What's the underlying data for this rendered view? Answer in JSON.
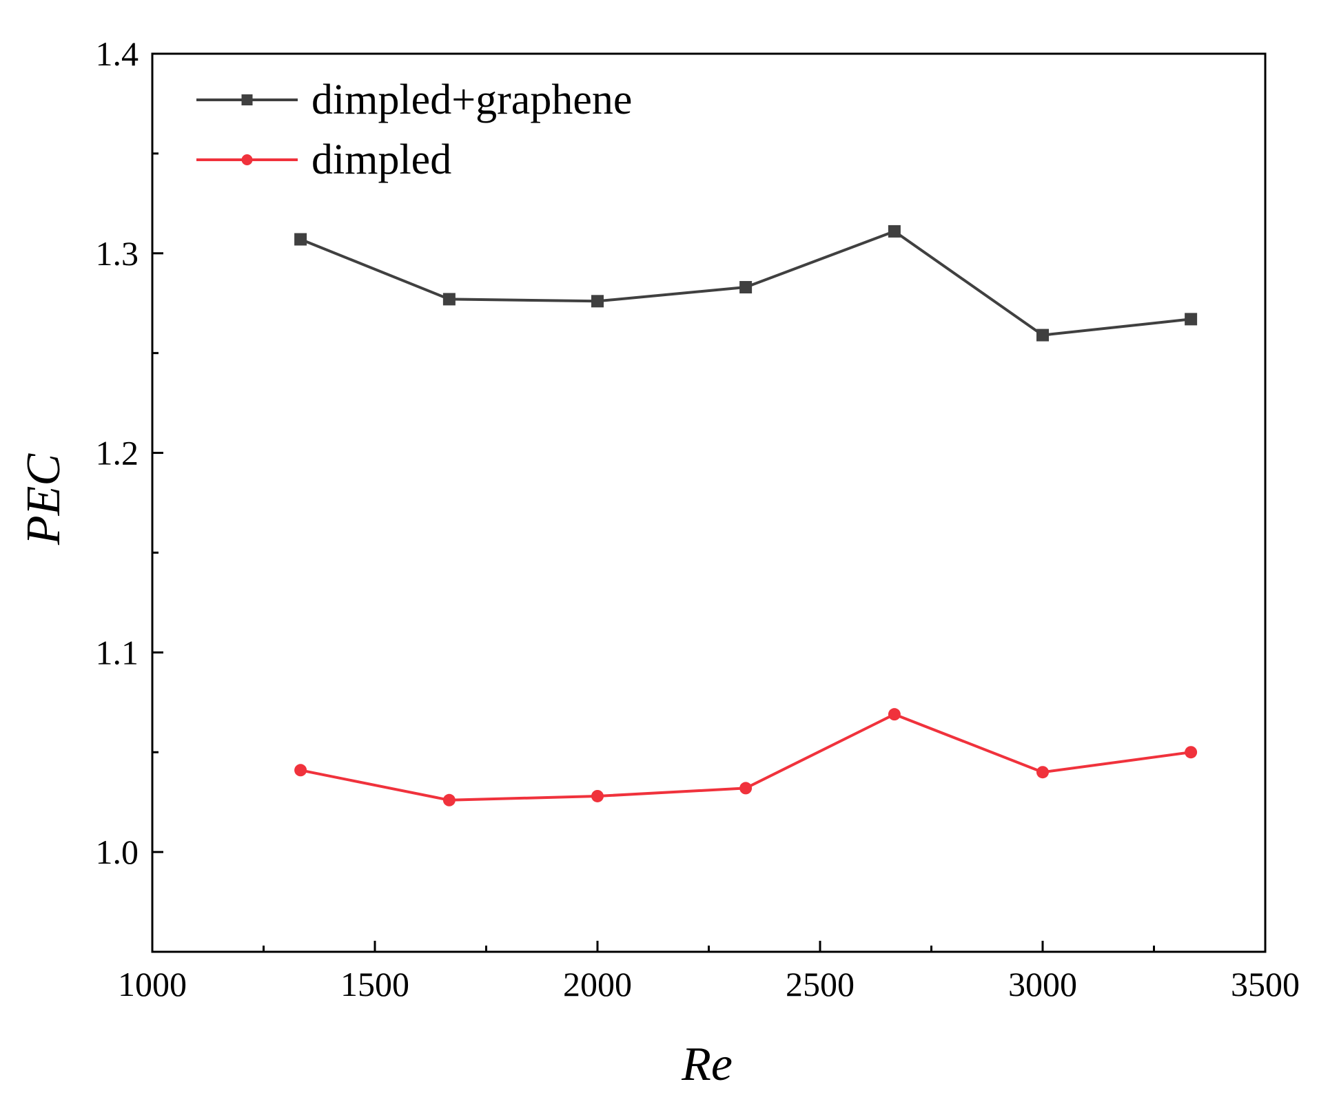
{
  "chart_data": {
    "type": "line",
    "title": "",
    "xlabel": "Re",
    "ylabel": "PEC",
    "xlim": [
      1000,
      3500
    ],
    "ylim": [
      0.95,
      1.4
    ],
    "x_major_ticks": [
      1000,
      1500,
      2000,
      2500,
      3000,
      3500
    ],
    "x_tick_labels": [
      "1000",
      "1500",
      "2000",
      "2500",
      "3000",
      "3500"
    ],
    "x_minor_ticks": [
      1250,
      1750,
      2250,
      2750,
      3250
    ],
    "y_major_ticks": [
      1.0,
      1.1,
      1.2,
      1.3,
      1.4
    ],
    "y_tick_labels": [
      "1.0",
      "1.1",
      "1.2",
      "1.3",
      "1.4"
    ],
    "y_minor_ticks": [
      0.95,
      1.05,
      1.15,
      1.25,
      1.35
    ],
    "grid": false,
    "legend_position": "top-left",
    "x": [
      1333,
      1667,
      2000,
      2333,
      2667,
      3000,
      3333
    ],
    "series": [
      {
        "name": "dimpled+graphene",
        "color": "#404040",
        "marker": "square",
        "values": [
          1.307,
          1.277,
          1.276,
          1.283,
          1.311,
          1.259,
          1.267
        ]
      },
      {
        "name": "dimpled",
        "color": "#f0323c",
        "marker": "circle",
        "values": [
          1.041,
          1.026,
          1.028,
          1.032,
          1.069,
          1.04,
          1.05
        ]
      }
    ]
  }
}
